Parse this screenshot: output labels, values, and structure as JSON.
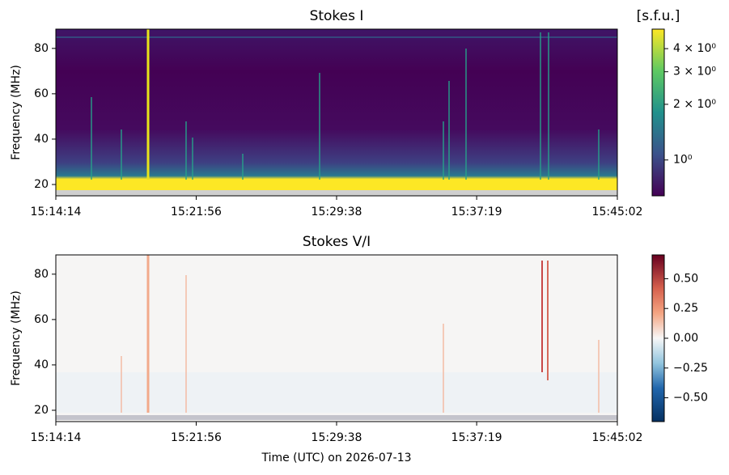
{
  "chart_data": [
    {
      "type": "heatmap",
      "title": "Stokes I",
      "ylabel": "Frequency (MHz)",
      "xlim": [
        54854,
        56702
      ],
      "xticks": [
        {
          "value": 54854,
          "label": "15:14:14"
        },
        {
          "value": 55316,
          "label": "15:21:56"
        },
        {
          "value": 55778,
          "label": "15:29:38"
        },
        {
          "value": 56239,
          "label": "15:37:19"
        },
        {
          "value": 56702,
          "label": "15:45:02"
        }
      ],
      "ylim": [
        15,
        88.5
      ],
      "yticks": [
        20,
        40,
        60,
        80
      ],
      "colorbar": {
        "label": "[s.f.u.]",
        "scale": "log",
        "lim": [
          0.64,
          5.1
        ],
        "colormap": "viridis",
        "ticks": [
          {
            "value": 1,
            "label": "10⁰"
          },
          {
            "value": 2,
            "label": "2 × 10⁰"
          },
          {
            "value": 3,
            "label": "3 × 10⁰"
          },
          {
            "value": 4,
            "label": "4 × 10⁰"
          }
        ]
      }
    },
    {
      "type": "heatmap",
      "title": "Stokes V/I",
      "xlabel": "Time (UTC) on 2026-07-13",
      "ylabel": "Frequency (MHz)",
      "xlim": [
        54854,
        56702
      ],
      "xticks": [
        {
          "value": 54854,
          "label": "15:14:14"
        },
        {
          "value": 55316,
          "label": "15:21:56"
        },
        {
          "value": 55778,
          "label": "15:29:38"
        },
        {
          "value": 56239,
          "label": "15:37:19"
        },
        {
          "value": 56702,
          "label": "15:45:02"
        }
      ],
      "ylim": [
        15,
        88.5
      ],
      "yticks": [
        20,
        40,
        60,
        80
      ],
      "colorbar": {
        "scale": "linear",
        "lim": [
          -0.7,
          0.7
        ],
        "colormap": "RdBu_r",
        "ticks": [
          {
            "value": -0.5,
            "label": "−0.50"
          },
          {
            "value": -0.25,
            "label": "−0.25"
          },
          {
            "value": 0,
            "label": "0.00"
          },
          {
            "value": 0.25,
            "label": "0.25"
          },
          {
            "value": 0.5,
            "label": "0.50"
          }
        ]
      }
    }
  ]
}
